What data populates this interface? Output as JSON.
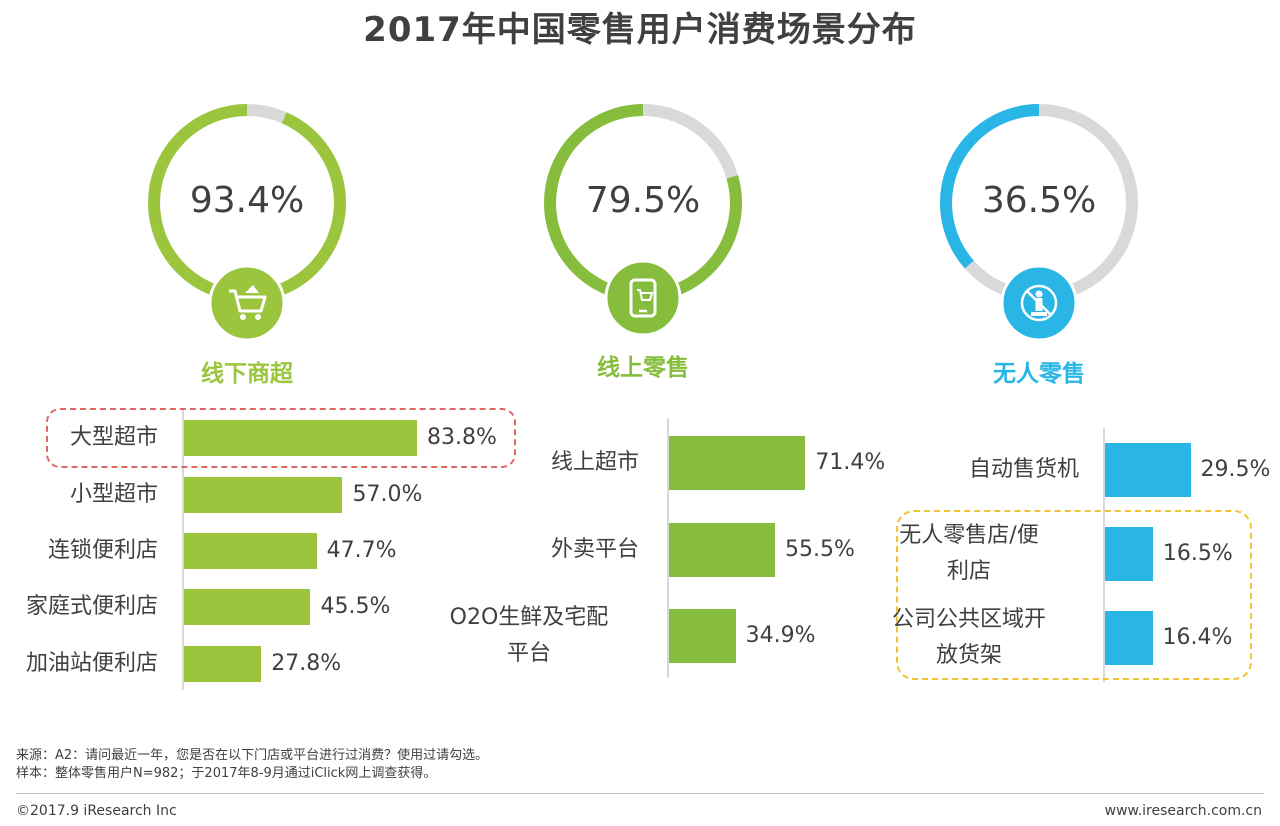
{
  "title": "2017年中国零售用户消费场景分布",
  "colors": {
    "green": "#9bc53d",
    "blue": "#29b6e6",
    "grey": "#d9d9d9",
    "green_dark": "#86bd3c"
  },
  "chart_data": [
    {
      "type": "donut",
      "title": "线下商超",
      "value": 93.4,
      "label": "93.4%",
      "icon": "shopping-cart-icon"
    },
    {
      "type": "donut",
      "title": "线上零售",
      "value": 79.5,
      "label": "79.5%",
      "icon": "mobile-shop-icon"
    },
    {
      "type": "donut",
      "title": "无人零售",
      "value": 36.5,
      "label": "36.5%",
      "icon": "no-person-icon"
    },
    {
      "type": "bar",
      "orientation": "horizontal",
      "panel": "线下商超",
      "categories": [
        "大型超市",
        "小型超市",
        "连锁便利店",
        "家庭式便利店",
        "加油站便利店"
      ],
      "values": [
        83.8,
        57.0,
        47.7,
        45.5,
        27.8
      ],
      "value_labels": [
        "83.8%",
        "57.0%",
        "47.7%",
        "45.5%",
        "27.8%"
      ],
      "highlighted": [
        "大型超市"
      ]
    },
    {
      "type": "bar",
      "orientation": "horizontal",
      "panel": "线上零售",
      "categories": [
        "线上超市",
        "外卖平台",
        "O2O生鲜及宅配平台"
      ],
      "category_lines": [
        [
          "线上超市"
        ],
        [
          "外卖平台"
        ],
        [
          "O2O生鲜及宅配",
          "平台"
        ]
      ],
      "values": [
        71.4,
        55.5,
        34.9
      ],
      "value_labels": [
        "71.4%",
        "55.5%",
        "34.9%"
      ]
    },
    {
      "type": "bar",
      "orientation": "horizontal",
      "panel": "无人零售",
      "categories": [
        "自动售货机",
        "无人零售店/便利店",
        "公司公共区域开放货架"
      ],
      "category_lines": [
        [
          "自动售货机"
        ],
        [
          "无人零售店/便",
          "利店"
        ],
        [
          "公司公共区域开",
          "放货架"
        ]
      ],
      "values": [
        29.5,
        16.5,
        16.4
      ],
      "value_labels": [
        "29.5%",
        "16.5%",
        "16.4%"
      ],
      "highlighted": [
        "无人零售店/便利店",
        "公司公共区域开放货架"
      ]
    }
  ],
  "footer": {
    "source": "来源：A2：请问最近一年，您是否在以下门店或平台进行过消费？使用过请勾选。",
    "sample": "样本：整体零售用户N=982；于2017年8-9月通过iClick网上调查获得。",
    "copyright": "©2017.9 iResearch Inc",
    "website": "www.iresearch.com.cn"
  }
}
